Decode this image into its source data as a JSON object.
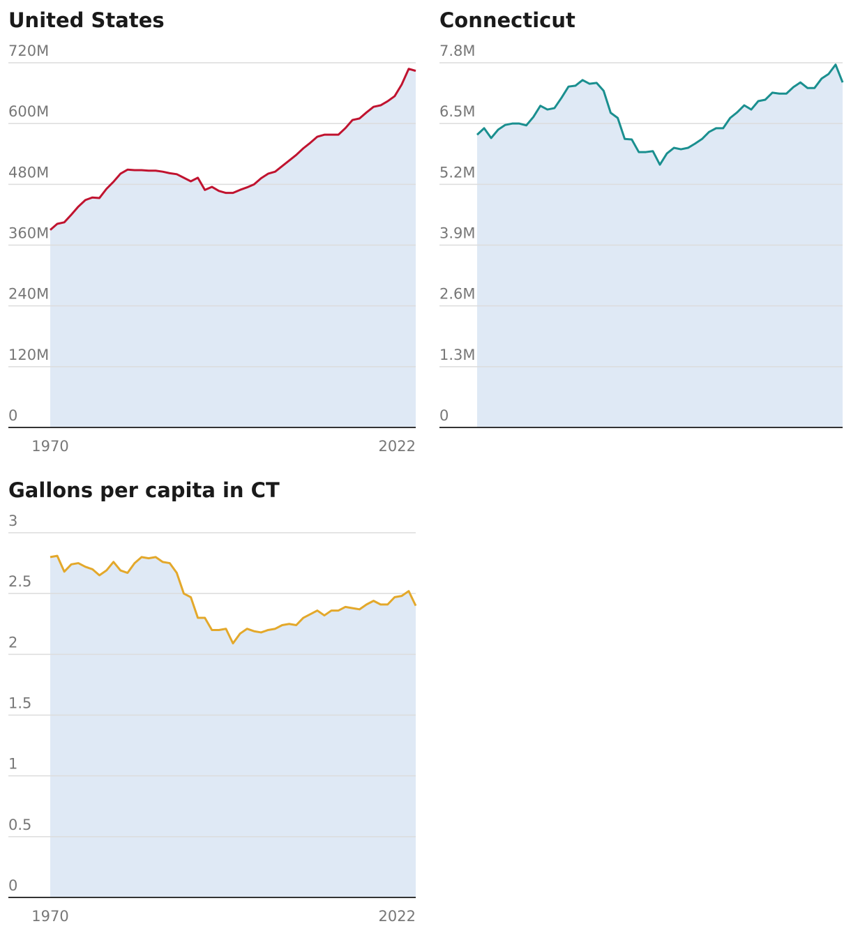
{
  "chart_data": [
    {
      "type": "line",
      "title": "United States",
      "area": true,
      "color": "#c0132f",
      "fill_color": "#dfe9f5",
      "grid": true,
      "x": [
        1970,
        1971,
        1972,
        1973,
        1974,
        1975,
        1976,
        1977,
        1978,
        1979,
        1980,
        1981,
        1982,
        1983,
        1984,
        1985,
        1986,
        1987,
        1988,
        1989,
        1990,
        1991,
        1992,
        1993,
        1994,
        1995,
        1996,
        1997,
        1998,
        1999,
        2000,
        2001,
        2002,
        2003,
        2004,
        2005,
        2006,
        2007,
        2008,
        2009,
        2010,
        2011,
        2012,
        2013,
        2014,
        2015,
        2016,
        2017,
        2018,
        2019,
        2020,
        2021,
        2022
      ],
      "values": [
        390000000.0,
        402000000.0,
        405000000.0,
        420000000.0,
        436000000.0,
        449000000.0,
        454000000.0,
        453000000.0,
        471000000.0,
        485000000.0,
        501000000.0,
        509000000.0,
        508000000.0,
        508000000.0,
        507000000.0,
        507000000.0,
        505000000.0,
        502000000.0,
        500000000.0,
        493000000.0,
        486000000.0,
        493000000.0,
        469000000.0,
        475000000.0,
        467000000.0,
        463000000.0,
        463000000.0,
        469000000.0,
        474000000.0,
        480000000.0,
        492000000.0,
        501000000.0,
        505000000.0,
        516000000.0,
        527000000.0,
        538000000.0,
        551000000.0,
        562000000.0,
        574000000.0,
        578000000.0,
        578000000.0,
        578000000.0,
        591000000.0,
        607000000.0,
        610000000.0,
        622000000.0,
        633000000.0,
        636000000.0,
        644000000.0,
        654000000.0,
        677000000.0,
        708000000.0,
        704000000.0
      ],
      "xlim": [
        1970,
        2022
      ],
      "xticks": [
        1970,
        2022
      ],
      "ylim": [
        0,
        720000000
      ],
      "yticks": [
        0,
        {
          "value": 120000000,
          "label": "120M"
        },
        {
          "value": 240000000,
          "label": "240M"
        },
        {
          "value": 360000000,
          "label": "360M"
        },
        {
          "value": 480000000,
          "label": "480M"
        },
        {
          "value": 600000000,
          "label": "600M"
        },
        {
          "value": 720000000,
          "label": "720M"
        }
      ]
    },
    {
      "type": "line",
      "title": "Connecticut",
      "area": true,
      "color": "#1a8f8f",
      "fill_color": "#dfe9f5",
      "grid": true,
      "x": [
        1970,
        1971,
        1972,
        1973,
        1974,
        1975,
        1976,
        1977,
        1978,
        1979,
        1980,
        1981,
        1982,
        1983,
        1984,
        1985,
        1986,
        1987,
        1988,
        1989,
        1990,
        1991,
        1992,
        1993,
        1994,
        1995,
        1996,
        1997,
        1998,
        1999,
        2000,
        2001,
        2002,
        2003,
        2004,
        2005,
        2006,
        2007,
        2008,
        2009,
        2010,
        2011,
        2012,
        2013,
        2014,
        2015,
        2016,
        2017,
        2018,
        2019,
        2020,
        2021,
        2022
      ],
      "values": [
        6260000.0,
        6400000.0,
        6190000.0,
        6370000.0,
        6470000.0,
        6500000.0,
        6500000.0,
        6460000.0,
        6640000.0,
        6880000.0,
        6800000.0,
        6830000.0,
        7050000.0,
        7290000.0,
        7310000.0,
        7430000.0,
        7350000.0,
        7370000.0,
        7200000.0,
        6730000.0,
        6620000.0,
        6170000.0,
        6160000.0,
        5890000.0,
        5890000.0,
        5910000.0,
        5620000.0,
        5860000.0,
        5980000.0,
        5950000.0,
        5980000.0,
        6070000.0,
        6170000.0,
        6320000.0,
        6400000.0,
        6400000.0,
        6620000.0,
        6740000.0,
        6890000.0,
        6800000.0,
        6980000.0,
        7010000.0,
        7160000.0,
        7140000.0,
        7140000.0,
        7280000.0,
        7380000.0,
        7260000.0,
        7260000.0,
        7460000.0,
        7560000.0,
        7760000.0,
        7380000.0
      ],
      "xlim": [
        1970,
        2022
      ],
      "ylim": [
        0,
        7800000
      ],
      "yticks": [
        0,
        {
          "value": 1300000,
          "label": "1.3M"
        },
        {
          "value": 2600000,
          "label": "2.6M"
        },
        {
          "value": 3900000,
          "label": "3.9M"
        },
        {
          "value": 5200000,
          "label": "5.2M"
        },
        {
          "value": 6500000,
          "label": "6.5M"
        },
        {
          "value": 7800000,
          "label": "7.8M"
        }
      ]
    },
    {
      "type": "line",
      "title": "Gallons per capita in CT",
      "area": true,
      "color": "#e3a82b",
      "fill_color": "#dfe9f5",
      "grid": true,
      "x": [
        1970,
        1971,
        1972,
        1973,
        1974,
        1975,
        1976,
        1977,
        1978,
        1979,
        1980,
        1981,
        1982,
        1983,
        1984,
        1985,
        1986,
        1987,
        1988,
        1989,
        1990,
        1991,
        1992,
        1993,
        1994,
        1995,
        1996,
        1997,
        1998,
        1999,
        2000,
        2001,
        2002,
        2003,
        2004,
        2005,
        2006,
        2007,
        2008,
        2009,
        2010,
        2011,
        2012,
        2013,
        2014,
        2015,
        2016,
        2017,
        2018,
        2019,
        2020,
        2021,
        2022
      ],
      "values": [
        2.8,
        2.81,
        2.68,
        2.74,
        2.75,
        2.72,
        2.7,
        2.65,
        2.69,
        2.76,
        2.69,
        2.67,
        2.75,
        2.8,
        2.79,
        2.8,
        2.76,
        2.75,
        2.67,
        2.5,
        2.47,
        2.3,
        2.3,
        2.2,
        2.2,
        2.21,
        2.09,
        2.17,
        2.21,
        2.19,
        2.18,
        2.2,
        2.21,
        2.24,
        2.25,
        2.24,
        2.3,
        2.33,
        2.36,
        2.32,
        2.36,
        2.36,
        2.39,
        2.38,
        2.37,
        2.41,
        2.44,
        2.41,
        2.41,
        2.47,
        2.48,
        2.52,
        2.4
      ],
      "xlim": [
        1970,
        2022
      ],
      "xticks": [
        1970,
        2022
      ],
      "ylim": [
        0,
        3
      ],
      "yticks": [
        0,
        0.5,
        1,
        1.5,
        2,
        2.5,
        3
      ]
    }
  ]
}
